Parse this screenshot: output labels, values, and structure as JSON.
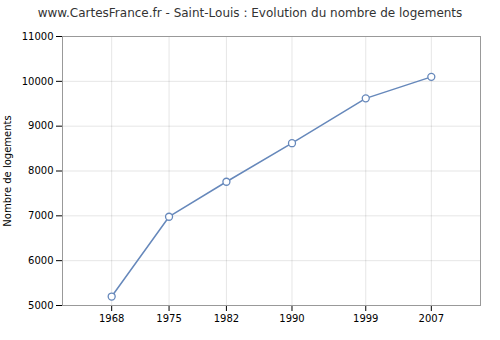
{
  "chart_data": {
    "type": "line",
    "title": "www.CartesFrance.fr - Saint-Louis : Evolution du nombre de logements",
    "ylabel": "Nombre de logements",
    "x": [
      1968,
      1975,
      1982,
      1990,
      1999,
      2007
    ],
    "values": [
      5200,
      6980,
      7760,
      8620,
      9620,
      10100
    ],
    "xlim": [
      1962,
      2013
    ],
    "xticks": [
      1968,
      1975,
      1982,
      1990,
      1999,
      2007
    ],
    "ylim": [
      5000,
      11000
    ],
    "yticks": [
      5000,
      6000,
      7000,
      8000,
      9000,
      10000,
      11000
    ],
    "color": "#6688bb",
    "marker": "circle",
    "grid": true
  }
}
